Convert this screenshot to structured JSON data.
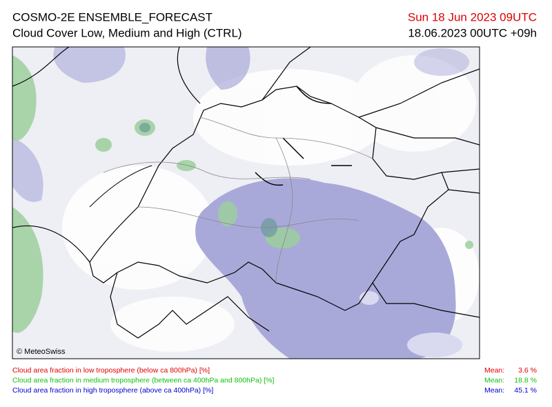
{
  "header": {
    "title": "COSMO-2E ENSEMBLE_FORECAST",
    "subtitle": "Cloud Cover Low, Medium and High (CTRL)",
    "valid_time": "Sun 18 Jun 2023 09UTC",
    "valid_time_color": "#e00000",
    "run_time": "18.06.2023 00UTC +09h"
  },
  "map": {
    "credit": "© MeteoSwiss"
  },
  "legend": {
    "rows": [
      {
        "label": "Cloud area fraction in low troposphere (below ca 800hPa) [%]",
        "mean_label": "Mean:",
        "mean": "3.6 %",
        "color": "#e00000"
      },
      {
        "label": "Cloud area fraction in medium troposphere (between ca 400hPa and 800hPa) [%]",
        "mean_label": "Mean:",
        "mean": "18.8 %",
        "color": "#10c010"
      },
      {
        "label": "Cloud area fraction in high troposphere (above ca 400hPa) [%]",
        "mean_label": "Mean:",
        "mean": "45.1 %",
        "color": "#0000d0"
      }
    ]
  }
}
